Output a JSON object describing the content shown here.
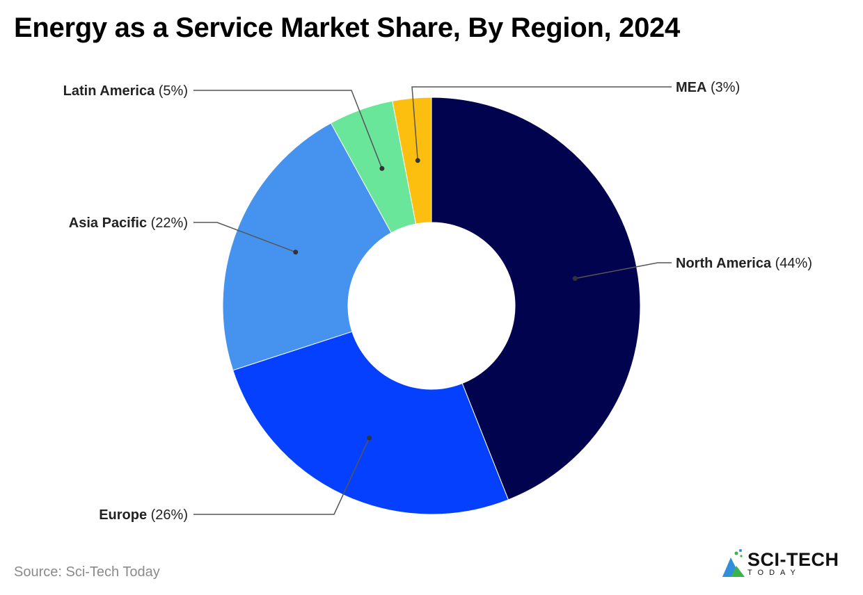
{
  "title": "Energy as a Service Market Share, By Region, 2024",
  "source": "Source: Sci-Tech Today",
  "logo": {
    "name": "SCI-TECH",
    "sub": "TODAY",
    "colors": [
      "#2f8fd8",
      "#3bb34a"
    ]
  },
  "chart_data": {
    "type": "pie",
    "style": "donut",
    "slices": [
      {
        "label": "North America",
        "value": 44,
        "display": "(44%)",
        "color": "#02034f"
      },
      {
        "label": "Europe",
        "value": 26,
        "display": "(26%)",
        "color": "#0540ff"
      },
      {
        "label": "Asia Pacific",
        "value": 22,
        "display": "(22%)",
        "color": "#4592ef"
      },
      {
        "label": "Latin America",
        "value": 5,
        "display": "(5%)",
        "color": "#6ae69b"
      },
      {
        "label": "MEA",
        "value": 3,
        "display": "(3%)",
        "color": "#fdbf0f"
      }
    ],
    "legend": "none"
  }
}
